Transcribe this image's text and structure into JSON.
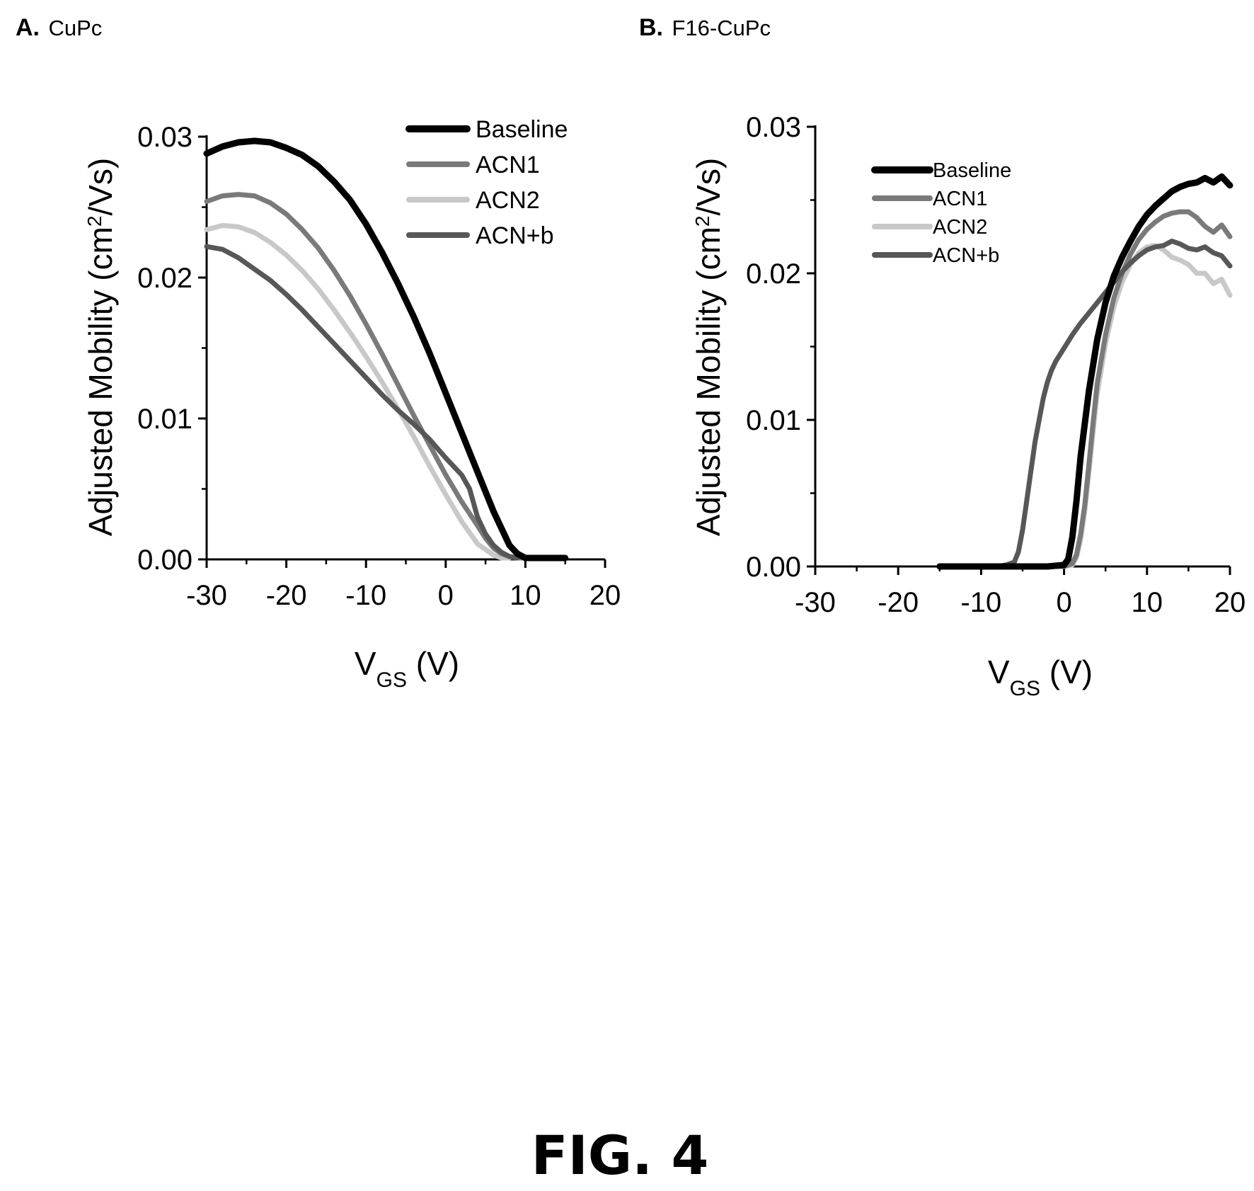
{
  "figure": {
    "caption": "FIG. 4"
  },
  "chart_data": [
    {
      "type": "line",
      "panel_letter": "A.",
      "title": "CuPc",
      "ylabel": "Adjusted Mobility (cm",
      "ylabel_sup": "2",
      "ylabel_tail": "/Vs)",
      "xlabel": "V",
      "xlabel_sub": "GS",
      "xlabel_tail": " (V)",
      "xlim": [
        -30,
        20
      ],
      "ylim": [
        0,
        0.03
      ],
      "xticks": [
        -30,
        -20,
        -10,
        0,
        10,
        20
      ],
      "yticks": [
        0.0,
        0.01,
        0.02,
        0.03
      ],
      "xtick_labels": [
        "-30",
        "-20",
        "-10",
        "0",
        "10",
        "20"
      ],
      "ytick_labels": [
        "0.00",
        "0.01",
        "0.02",
        "0.03"
      ],
      "legend_position": "top-right",
      "series": [
        {
          "name": "Baseline",
          "color": "#000000",
          "x": [
            -30,
            -28,
            -26,
            -24,
            -22,
            -20,
            -18,
            -16,
            -14,
            -12,
            -10,
            -8,
            -6,
            -4,
            -2,
            0,
            2,
            4,
            6,
            8,
            9,
            10,
            12,
            15
          ],
          "y": [
            0.0288,
            0.0293,
            0.0296,
            0.0297,
            0.0296,
            0.0292,
            0.0287,
            0.0279,
            0.0268,
            0.0255,
            0.0238,
            0.0218,
            0.0196,
            0.0172,
            0.0146,
            0.0118,
            0.009,
            0.0062,
            0.0034,
            0.001,
            0.0004,
            0.0001,
            0.0001,
            0.0001
          ]
        },
        {
          "name": "ACN1",
          "color": "#7a7a7a",
          "x": [
            -30,
            -28,
            -26,
            -24,
            -22,
            -20,
            -18,
            -16,
            -14,
            -12,
            -10,
            -8,
            -6,
            -4,
            -2,
            0,
            2,
            4,
            5,
            6,
            7,
            8,
            9,
            10
          ],
          "y": [
            0.0254,
            0.0258,
            0.0259,
            0.0258,
            0.0253,
            0.0245,
            0.0234,
            0.0221,
            0.0205,
            0.0187,
            0.0167,
            0.0146,
            0.0124,
            0.0102,
            0.0081,
            0.006,
            0.0041,
            0.0024,
            0.0015,
            0.0008,
            0.0004,
            0.0002,
            0.0001,
            0.0001
          ]
        },
        {
          "name": "ACN2",
          "color": "#c8c8c8",
          "x": [
            -30,
            -28,
            -26,
            -24,
            -22,
            -20,
            -18,
            -16,
            -14,
            -12,
            -10,
            -8,
            -6,
            -4,
            -2,
            0,
            2,
            4,
            6,
            7,
            8
          ],
          "y": [
            0.0234,
            0.0237,
            0.0236,
            0.0232,
            0.0225,
            0.0216,
            0.0205,
            0.0192,
            0.0177,
            0.0161,
            0.0144,
            0.0126,
            0.0107,
            0.0087,
            0.0066,
            0.0046,
            0.0027,
            0.0011,
            0.0003,
            0.0001,
            0.0001
          ]
        },
        {
          "name": "ACN+b",
          "color": "#575757",
          "x": [
            -30,
            -28,
            -26,
            -24,
            -22,
            -20,
            -18,
            -16,
            -14,
            -12,
            -10,
            -8,
            -6,
            -4,
            -2,
            0,
            2,
            3,
            4,
            5,
            6,
            7,
            8,
            9
          ],
          "y": [
            0.0222,
            0.022,
            0.0214,
            0.0206,
            0.0198,
            0.0188,
            0.0177,
            0.0165,
            0.0153,
            0.0141,
            0.0129,
            0.0117,
            0.0106,
            0.0096,
            0.0085,
            0.0072,
            0.006,
            0.005,
            0.003,
            0.0018,
            0.001,
            0.0005,
            0.0002,
            0.0001
          ]
        }
      ]
    },
    {
      "type": "line",
      "panel_letter": "B.",
      "title": "F16-CuPc",
      "ylabel": "Adjusted Mobility (cm",
      "ylabel_sup": "2",
      "ylabel_tail": "/Vs)",
      "xlabel": "V",
      "xlabel_sub": "GS",
      "xlabel_tail": " (V)",
      "xlim": [
        -30,
        20
      ],
      "ylim": [
        0,
        0.03
      ],
      "xticks": [
        -30,
        -20,
        -10,
        0,
        10,
        20
      ],
      "yticks": [
        0.0,
        0.01,
        0.02,
        0.03
      ],
      "xtick_labels": [
        "-30",
        "-20",
        "-10",
        "0",
        "10",
        "20"
      ],
      "ytick_labels": [
        "0.00",
        "0.01",
        "0.02",
        "0.03"
      ],
      "legend_position": "top-left",
      "series": [
        {
          "name": "Baseline",
          "color": "#000000",
          "x": [
            -15,
            -10,
            -5,
            -2,
            0,
            0.5,
            1,
            1.5,
            2,
            3,
            4,
            5,
            6,
            7,
            8,
            9,
            10,
            11,
            12,
            13,
            14,
            15,
            16,
            17,
            18,
            19,
            20
          ],
          "y": [
            0.0,
            0.0,
            0.0,
            0.0,
            0.0001,
            0.0005,
            0.002,
            0.0045,
            0.0075,
            0.012,
            0.0155,
            0.018,
            0.0198,
            0.0211,
            0.0222,
            0.0232,
            0.024,
            0.0246,
            0.0251,
            0.0256,
            0.0259,
            0.0261,
            0.0262,
            0.0265,
            0.0262,
            0.0266,
            0.026
          ]
        },
        {
          "name": "ACN1",
          "color": "#7a7a7a",
          "x": [
            -15,
            -10,
            -5,
            -2,
            0,
            1,
            1.5,
            2,
            2.5,
            3,
            3.5,
            4,
            5,
            6,
            7,
            8,
            9,
            10,
            11,
            12,
            13,
            14,
            15,
            16,
            17,
            18,
            19,
            20
          ],
          "y": [
            0.0,
            0.0,
            0.0,
            0.0,
            0.0,
            0.0002,
            0.0008,
            0.0022,
            0.0042,
            0.007,
            0.0098,
            0.0125,
            0.0158,
            0.0183,
            0.02,
            0.0213,
            0.0223,
            0.023,
            0.0235,
            0.0239,
            0.0241,
            0.0242,
            0.0242,
            0.0238,
            0.0232,
            0.0228,
            0.0233,
            0.0225
          ]
        },
        {
          "name": "ACN2",
          "color": "#c8c8c8",
          "x": [
            -15,
            -10,
            -5,
            -2,
            0,
            1,
            1.5,
            2,
            2.5,
            3,
            3.5,
            4,
            5,
            6,
            7,
            8,
            9,
            10,
            11,
            12,
            13,
            14,
            15,
            16,
            17,
            18,
            19,
            20
          ],
          "y": [
            0.0,
            0.0,
            0.0,
            0.0,
            0.0,
            0.0001,
            0.0006,
            0.0018,
            0.0038,
            0.0064,
            0.0092,
            0.0118,
            0.0152,
            0.0177,
            0.0194,
            0.0206,
            0.0214,
            0.0218,
            0.0219,
            0.0216,
            0.0211,
            0.0209,
            0.0206,
            0.02,
            0.02,
            0.0193,
            0.0196,
            0.0185
          ]
        },
        {
          "name": "ACN+b",
          "color": "#575757",
          "x": [
            -15,
            -10,
            -8,
            -7,
            -6,
            -5.5,
            -5,
            -4.5,
            -4,
            -3.5,
            -3,
            -2.5,
            -2,
            -1.5,
            -1,
            0,
            1,
            2,
            3,
            4,
            5,
            6,
            7,
            8,
            9,
            10,
            11,
            12,
            13,
            14,
            15,
            16,
            17,
            18,
            19,
            20
          ],
          "y": [
            0.0,
            0.0,
            0.0,
            0.0001,
            0.0003,
            0.001,
            0.0025,
            0.0045,
            0.0065,
            0.0085,
            0.01,
            0.0115,
            0.0126,
            0.0134,
            0.014,
            0.0149,
            0.0158,
            0.0166,
            0.0173,
            0.018,
            0.0187,
            0.0194,
            0.0201,
            0.0207,
            0.0212,
            0.0216,
            0.0218,
            0.0219,
            0.0222,
            0.022,
            0.0217,
            0.0216,
            0.0218,
            0.0214,
            0.0212,
            0.0205
          ]
        }
      ]
    }
  ]
}
